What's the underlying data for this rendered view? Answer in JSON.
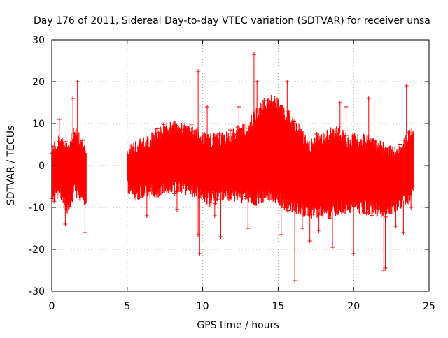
{
  "chart_data": {
    "type": "scatter",
    "title": "Day 176 of 2011, Sidereal Day-to-day VTEC variation (SDTVAR) for receiver unsa",
    "xlabel": "GPS time / hours",
    "ylabel": "SDTVAR / TECUs",
    "xlim": [
      0,
      25
    ],
    "ylim": [
      -30,
      30
    ],
    "x_ticks": [
      0,
      5,
      10,
      15,
      20,
      25
    ],
    "y_ticks": [
      -30,
      -20,
      -10,
      0,
      10,
      20,
      30
    ],
    "x_tick_labels": [
      "0",
      "5",
      "10",
      "15",
      "20",
      "25"
    ],
    "y_tick_labels": [
      "-30",
      "-20",
      "-10",
      "0",
      "10",
      "20",
      "30"
    ],
    "grid": true,
    "point_style": "plus",
    "color": "#ff0000",
    "series": [
      {
        "name": "SDTVAR",
        "envelope_x": [
          0.0,
          0.5,
          1.0,
          1.5,
          2.0,
          2.3,
          5.0,
          5.5,
          6.0,
          6.5,
          7.0,
          7.5,
          8.0,
          8.5,
          9.0,
          9.5,
          10.0,
          10.5,
          11.0,
          11.5,
          12.0,
          12.5,
          13.0,
          13.5,
          14.0,
          14.5,
          15.0,
          15.5,
          16.0,
          16.5,
          17.0,
          17.5,
          18.0,
          18.5,
          19.0,
          19.5,
          20.0,
          20.5,
          21.0,
          21.5,
          22.0,
          22.5,
          23.0,
          23.5,
          24.0
        ],
        "envelope_upper": [
          3,
          6,
          4,
          8,
          5,
          2,
          3,
          4,
          5,
          6,
          7.5,
          8.5,
          9,
          9,
          8.5,
          8,
          6.5,
          6,
          6,
          6.5,
          7,
          8,
          9,
          12,
          14,
          15.5,
          14.5,
          12,
          10,
          8,
          4,
          6,
          7,
          7.5,
          8,
          6,
          6,
          6,
          5.5,
          5,
          4,
          3,
          3,
          6,
          8
        ],
        "envelope_lower": [
          -8,
          -6,
          -10,
          -6,
          -7,
          -9,
          -5,
          -7,
          -6,
          -6,
          -6,
          -5.5,
          -5,
          -5,
          -5.5,
          -6,
          -7,
          -8,
          -7,
          -7,
          -7,
          -7.5,
          -7,
          -8,
          -7,
          -7,
          -8,
          -9,
          -10,
          -10,
          -11,
          -11,
          -11,
          -11,
          -10,
          -10,
          -10,
          -10,
          -10,
          -10.5,
          -11,
          -10,
          -9,
          -8,
          -6
        ],
        "outliers": [
          [
            0.5,
            11
          ],
          [
            0.9,
            -14
          ],
          [
            1.4,
            16
          ],
          [
            1.7,
            20
          ],
          [
            2.2,
            -16
          ],
          [
            6.3,
            -12
          ],
          [
            8.3,
            -10.5
          ],
          [
            9.7,
            22.5
          ],
          [
            9.7,
            -16.5
          ],
          [
            9.8,
            -21
          ],
          [
            10.3,
            14
          ],
          [
            10.8,
            -12
          ],
          [
            11.2,
            -17
          ],
          [
            12.4,
            14
          ],
          [
            13.0,
            -15
          ],
          [
            13.4,
            26.5
          ],
          [
            13.6,
            20
          ],
          [
            15.2,
            -16.5
          ],
          [
            15.6,
            20
          ],
          [
            16.1,
            -27.5
          ],
          [
            16.6,
            -15
          ],
          [
            17.1,
            -18
          ],
          [
            17.7,
            -15.5
          ],
          [
            18.6,
            -19.5
          ],
          [
            19.1,
            15
          ],
          [
            19.5,
            14
          ],
          [
            20.0,
            -21
          ],
          [
            21.0,
            16
          ],
          [
            22.0,
            -25
          ],
          [
            22.1,
            -24.5
          ],
          [
            22.8,
            -14.5
          ],
          [
            23.3,
            -16
          ],
          [
            23.5,
            19
          ],
          [
            23.8,
            -10
          ]
        ]
      }
    ]
  }
}
